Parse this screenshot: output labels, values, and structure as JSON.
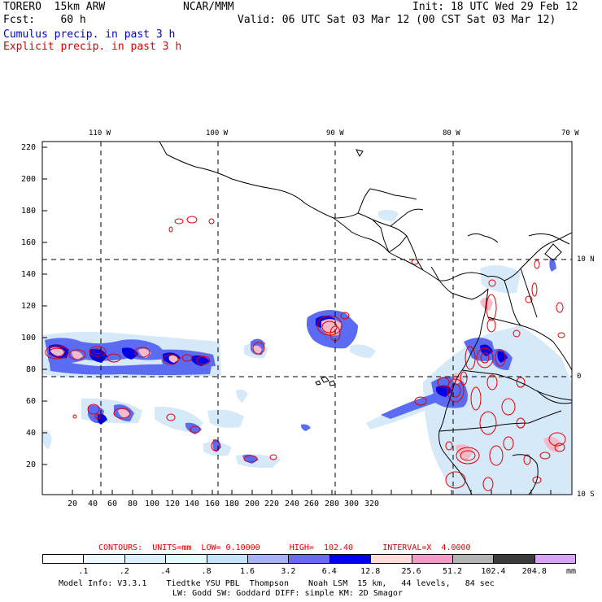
{
  "header": {
    "model": "TORERO  15km ARW",
    "org": "NCAR/MMM",
    "init": "Init: 18 UTC Wed 29 Feb 12",
    "fcst": "Fcst:    60 h",
    "valid": "Valid: 06 UTC Sat 03 Mar 12 (00 CST Sat 03 Mar 12)",
    "field1": "Cumulus precip. in past 3 h",
    "field2": "Explicit precip. in past 3 h"
  },
  "map": {
    "lon_labels": [
      "110 W",
      "100 W",
      "90 W",
      "80 W",
      "70 W"
    ],
    "lat_labels": [
      "10 N",
      "0",
      "10 S"
    ],
    "y_ticks": [
      "220",
      "200",
      "180",
      "160",
      "140",
      "120",
      "100",
      "80",
      "60",
      "40",
      "20"
    ],
    "x_ticks": [
      "20",
      "40",
      "60",
      "80",
      "100",
      "120",
      "140",
      "160",
      "180",
      "200",
      "220",
      "240",
      "260",
      "280",
      "300",
      "320"
    ]
  },
  "contours": {
    "label": "CONTOURS:  UNITS=mm  LOW= 0.10000      HIGH=  102.40      INTERVAL=X  4.0000"
  },
  "colorbar": {
    "levels": [
      ".1",
      ".2",
      ".4",
      ".8",
      "1.6",
      "3.2",
      "6.4",
      "12.8",
      "25.6",
      "51.2",
      "102.4",
      "204.8"
    ],
    "colors": [
      "#ffffff",
      "#eef8ff",
      "#ddf1fd",
      "#e4fbfb",
      "#c7e3f7",
      "#a9b1f7",
      "#6a6af7",
      "#0000f0",
      "#ffdcdc",
      "#f59ac8",
      "#b4b4b4",
      "#3c3c3c",
      "#d9a4f5"
    ],
    "unit": "mm"
  },
  "footer": {
    "line1": "Model Info: V3.3.1    Tiedtke YSU PBL  Thompson    Noah LSM  15 km,   44 levels,   84 sec",
    "line2": "LW: Godd SW: Goddard DIFF: simple KM: 2D Smagor"
  }
}
